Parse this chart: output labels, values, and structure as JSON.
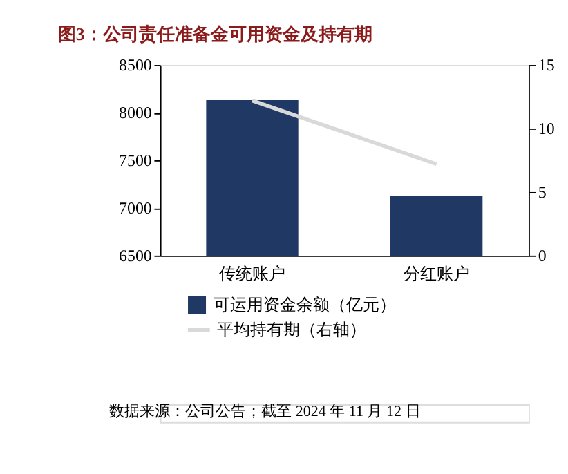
{
  "chart_data": {
    "type": "bar",
    "title": "图3：公司责任准备金可用资金及持有期",
    "categories": [
      "传统账户",
      "分红账户"
    ],
    "series": [
      {
        "name": "可运用资金余额（亿元）",
        "color": "#1f3864",
        "values": [
          8130,
          7130
        ]
      },
      {
        "name": "平均持有期（右轴）",
        "type": "line",
        "axis": "y2",
        "color": "#d9d9d9",
        "values": [
          12.2,
          7.2
        ]
      }
    ],
    "ylim": [
      6500,
      8500
    ],
    "yticks": [
      6500,
      7000,
      7500,
      8000,
      8500
    ],
    "y2lim": [
      0,
      15
    ],
    "y2ticks": [
      0,
      5,
      10,
      15
    ],
    "grid": false,
    "legend": "bottom",
    "marker": "none",
    "line_style": "solid",
    "annotations": [
      "数据来源：公司公告；截至 2024 年 11 月 12 日"
    ]
  }
}
